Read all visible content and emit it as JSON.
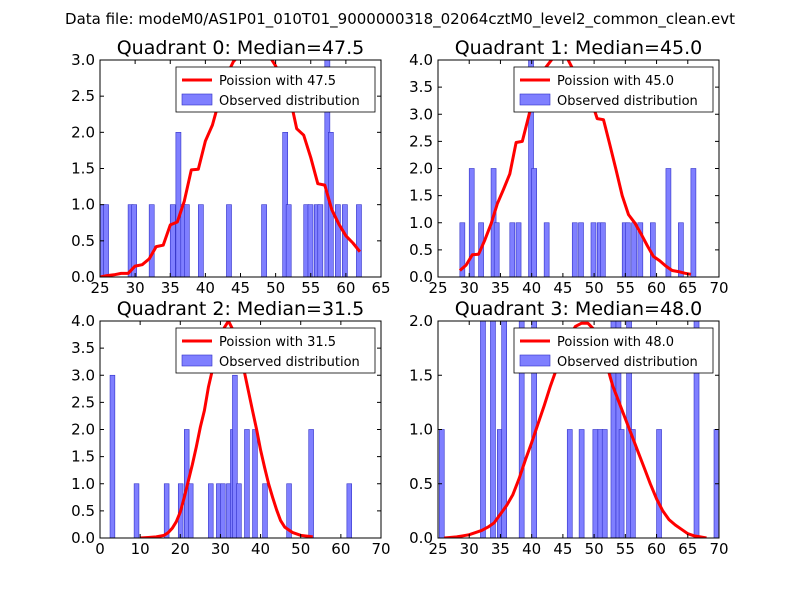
{
  "suptitle": "Data file: modeM0/AS1P01_010T01_9000000318_02064cztM0_level2_common_clean.evt",
  "colors": {
    "poisson": "#ff0000",
    "bars": "#7f7fff",
    "bar_edge": "#3030c8"
  },
  "chart_data": [
    {
      "type": "bar",
      "title": "Quadrant 0: Median=47.5",
      "median": 47.5,
      "xlim": [
        25,
        65
      ],
      "ylim": [
        0,
        3.0
      ],
      "xticks": [
        25,
        30,
        35,
        40,
        45,
        50,
        55,
        60,
        65
      ],
      "yticks": [
        0.0,
        0.5,
        1.0,
        1.5,
        2.0,
        2.5,
        3.0
      ],
      "bin_width": 0.72,
      "legend": [
        "Poission with 47.5",
        "Observed distribution"
      ],
      "bars": [
        [
          25,
          1
        ],
        [
          25.5,
          1
        ],
        [
          29,
          1
        ],
        [
          29.5,
          1
        ],
        [
          32,
          1
        ],
        [
          35,
          1
        ],
        [
          35.8,
          2
        ],
        [
          36.5,
          1
        ],
        [
          37,
          1
        ],
        [
          39,
          1
        ],
        [
          43,
          1
        ],
        [
          48,
          1
        ],
        [
          51,
          2
        ],
        [
          51.5,
          1
        ],
        [
          54,
          1
        ],
        [
          54.6,
          1
        ],
        [
          55.5,
          1
        ],
        [
          56,
          1
        ],
        [
          57,
          3
        ],
        [
          57.5,
          2
        ],
        [
          58.5,
          1
        ],
        [
          59.5,
          1
        ],
        [
          61.5,
          1
        ]
      ],
      "poisson": [
        [
          25,
          0
        ],
        [
          26,
          0.02
        ],
        [
          27,
          0.03
        ],
        [
          28,
          0.05
        ],
        [
          29,
          0.05
        ],
        [
          30,
          0.15
        ],
        [
          31,
          0.17
        ],
        [
          32,
          0.25
        ],
        [
          33,
          0.42
        ],
        [
          34,
          0.44
        ],
        [
          35,
          0.72
        ],
        [
          36,
          0.76
        ],
        [
          37,
          1.05
        ],
        [
          38,
          1.48
        ],
        [
          39,
          1.49
        ],
        [
          40,
          1.88
        ],
        [
          41,
          2.1
        ],
        [
          42,
          2.45
        ],
        [
          43,
          2.78
        ],
        [
          44,
          2.98
        ],
        [
          45,
          3.08
        ],
        [
          46,
          3.02
        ],
        [
          47,
          3.03
        ],
        [
          48,
          3.1
        ],
        [
          49,
          3.07
        ],
        [
          50,
          2.92
        ],
        [
          51,
          2.7
        ],
        [
          52,
          2.5
        ],
        [
          53,
          2.05
        ],
        [
          54,
          1.96
        ],
        [
          55,
          1.65
        ],
        [
          56,
          1.29
        ],
        [
          57,
          1.27
        ],
        [
          58,
          0.93
        ],
        [
          59,
          0.73
        ],
        [
          60,
          0.57
        ],
        [
          61,
          0.47
        ],
        [
          62,
          0.35
        ]
      ]
    },
    {
      "type": "bar",
      "title": "Quadrant 1: Median=45.0",
      "median": 45.0,
      "xlim": [
        25,
        70
      ],
      "ylim": [
        0,
        4.0
      ],
      "xticks": [
        25,
        30,
        35,
        40,
        45,
        50,
        55,
        60,
        65,
        70
      ],
      "yticks": [
        0.0,
        0.5,
        1.0,
        1.5,
        2.0,
        2.5,
        3.0,
        3.5,
        4.0
      ],
      "bin_width": 0.8,
      "legend": [
        "Poission with 45.0",
        "Observed distribution"
      ],
      "bars": [
        [
          28.5,
          1
        ],
        [
          30,
          2
        ],
        [
          31.5,
          1
        ],
        [
          33.5,
          2
        ],
        [
          34,
          1
        ],
        [
          36.5,
          1
        ],
        [
          37.5,
          1
        ],
        [
          39.5,
          4
        ],
        [
          40,
          2
        ],
        [
          42,
          1
        ],
        [
          46.5,
          1
        ],
        [
          47.5,
          1
        ],
        [
          49.5,
          1
        ],
        [
          50.5,
          1
        ],
        [
          51,
          1
        ],
        [
          54.5,
          1
        ],
        [
          55,
          1
        ],
        [
          56,
          1
        ],
        [
          57,
          1
        ],
        [
          59,
          1
        ],
        [
          61.5,
          2
        ],
        [
          63.5,
          1
        ],
        [
          65.5,
          2
        ]
      ],
      "poisson": [
        [
          28.5,
          0.12
        ],
        [
          29.5,
          0.22
        ],
        [
          30.5,
          0.41
        ],
        [
          31.5,
          0.42
        ],
        [
          32.5,
          0.68
        ],
        [
          33.5,
          0.98
        ],
        [
          34.5,
          1.35
        ],
        [
          35.5,
          1.62
        ],
        [
          36.5,
          1.9
        ],
        [
          37.5,
          2.48
        ],
        [
          38.5,
          2.5
        ],
        [
          39.5,
          2.95
        ],
        [
          40.5,
          3.42
        ],
        [
          41.5,
          3.75
        ],
        [
          42.5,
          3.9
        ],
        [
          43.5,
          4.05
        ],
        [
          44.5,
          4.1
        ],
        [
          45.5,
          4.08
        ],
        [
          46.5,
          3.85
        ],
        [
          47.5,
          3.62
        ],
        [
          48.5,
          3.52
        ],
        [
          49.5,
          3.27
        ],
        [
          50.5,
          2.92
        ],
        [
          51.5,
          2.9
        ],
        [
          52.5,
          2.45
        ],
        [
          53.5,
          1.98
        ],
        [
          54.5,
          1.5
        ],
        [
          55.5,
          1.15
        ],
        [
          56.5,
          1.0
        ],
        [
          57.5,
          0.8
        ],
        [
          58.5,
          0.58
        ],
        [
          59.5,
          0.38
        ],
        [
          60.5,
          0.3
        ],
        [
          61.5,
          0.2
        ],
        [
          62.5,
          0.12
        ],
        [
          63.5,
          0.1
        ],
        [
          64.5,
          0.07
        ],
        [
          65.5,
          0.05
        ]
      ]
    },
    {
      "type": "bar",
      "title": "Quadrant 2: Median=31.5",
      "median": 31.5,
      "xlim": [
        0,
        70
      ],
      "ylim": [
        0,
        4.0
      ],
      "xticks": [
        0,
        10,
        20,
        30,
        40,
        50,
        60,
        70
      ],
      "yticks": [
        0.0,
        0.5,
        1.0,
        1.5,
        2.0,
        2.5,
        3.0,
        3.5,
        4.0
      ],
      "bin_width": 1.2,
      "legend": [
        "Poission with 31.5",
        "Observed distribution"
      ],
      "bars": [
        [
          2.5,
          3
        ],
        [
          8.5,
          1
        ],
        [
          16,
          1
        ],
        [
          19.5,
          1
        ],
        [
          21,
          2
        ],
        [
          22,
          1
        ],
        [
          27,
          1
        ],
        [
          29,
          1
        ],
        [
          30,
          1
        ],
        [
          31.5,
          1
        ],
        [
          32.5,
          2
        ],
        [
          33,
          3
        ],
        [
          34,
          1
        ],
        [
          36,
          2
        ],
        [
          38,
          2
        ],
        [
          40.5,
          1
        ],
        [
          46.5,
          1
        ],
        [
          52,
          2
        ],
        [
          61.5,
          1
        ]
      ],
      "poisson": [
        [
          10,
          0
        ],
        [
          12,
          0.01
        ],
        [
          14,
          0.02
        ],
        [
          16,
          0.05
        ],
        [
          17,
          0.1
        ],
        [
          18,
          0.18
        ],
        [
          19,
          0.3
        ],
        [
          20,
          0.48
        ],
        [
          21,
          0.75
        ],
        [
          22,
          1.05
        ],
        [
          23,
          1.35
        ],
        [
          24,
          1.68
        ],
        [
          25,
          2.05
        ],
        [
          26,
          2.35
        ],
        [
          27,
          2.78
        ],
        [
          28,
          3.1
        ],
        [
          29,
          3.38
        ],
        [
          30,
          3.65
        ],
        [
          31,
          3.88
        ],
        [
          32,
          4.0
        ],
        [
          33,
          3.85
        ],
        [
          34,
          3.55
        ],
        [
          35,
          3.32
        ],
        [
          36,
          3.05
        ],
        [
          37,
          2.7
        ],
        [
          38,
          2.35
        ],
        [
          39,
          2.0
        ],
        [
          40,
          1.62
        ],
        [
          41,
          1.3
        ],
        [
          42,
          1.0
        ],
        [
          43,
          0.75
        ],
        [
          44,
          0.52
        ],
        [
          45,
          0.32
        ],
        [
          46,
          0.2
        ],
        [
          48,
          0.1
        ],
        [
          50,
          0.05
        ],
        [
          53,
          0.02
        ]
      ]
    },
    {
      "type": "bar",
      "title": "Quadrant 3: Median=48.0",
      "median": 48.0,
      "xlim": [
        25,
        70
      ],
      "ylim": [
        0,
        2.0
      ],
      "xticks": [
        25,
        30,
        35,
        40,
        45,
        50,
        55,
        60,
        65,
        70
      ],
      "yticks": [
        0.0,
        0.5,
        1.0,
        1.5,
        2.0
      ],
      "bin_width": 0.8,
      "legend": [
        "Poission with 48.0",
        "Observed distribution"
      ],
      "bars": [
        [
          25.2,
          1
        ],
        [
          31.8,
          2
        ],
        [
          33.4,
          2
        ],
        [
          34.5,
          1
        ],
        [
          35.2,
          2
        ],
        [
          38,
          2
        ],
        [
          40,
          2
        ],
        [
          45.7,
          1
        ],
        [
          47.6,
          1
        ],
        [
          49.8,
          1
        ],
        [
          50.6,
          1
        ],
        [
          51.3,
          1
        ],
        [
          52.7,
          2
        ],
        [
          53.5,
          2
        ],
        [
          54,
          1
        ],
        [
          55.2,
          2
        ],
        [
          55.8,
          1
        ],
        [
          60,
          1
        ],
        [
          66,
          2
        ],
        [
          69.2,
          1
        ]
      ],
      "poisson": [
        [
          26,
          0
        ],
        [
          28,
          0.01
        ],
        [
          29,
          0.02
        ],
        [
          30,
          0.03
        ],
        [
          31,
          0.05
        ],
        [
          32,
          0.07
        ],
        [
          33,
          0.1
        ],
        [
          34,
          0.14
        ],
        [
          35,
          0.22
        ],
        [
          36,
          0.3
        ],
        [
          37,
          0.4
        ],
        [
          38,
          0.55
        ],
        [
          39,
          0.72
        ],
        [
          40,
          0.88
        ],
        [
          41,
          1.05
        ],
        [
          42,
          1.22
        ],
        [
          43,
          1.4
        ],
        [
          44,
          1.56
        ],
        [
          45,
          1.72
        ],
        [
          46,
          1.85
        ],
        [
          47,
          1.95
        ],
        [
          48,
          1.98
        ],
        [
          49,
          1.98
        ],
        [
          50,
          1.92
        ],
        [
          51,
          1.8
        ],
        [
          52,
          1.6
        ],
        [
          53,
          1.4
        ],
        [
          54,
          1.25
        ],
        [
          55,
          1.1
        ],
        [
          56,
          0.95
        ],
        [
          57,
          0.8
        ],
        [
          58,
          0.65
        ],
        [
          59,
          0.5
        ],
        [
          60,
          0.36
        ],
        [
          61,
          0.25
        ],
        [
          62,
          0.17
        ],
        [
          63,
          0.12
        ],
        [
          64,
          0.08
        ],
        [
          65,
          0.04
        ],
        [
          66,
          0.02
        ],
        [
          67,
          0.01
        ],
        [
          68,
          0
        ]
      ]
    }
  ]
}
